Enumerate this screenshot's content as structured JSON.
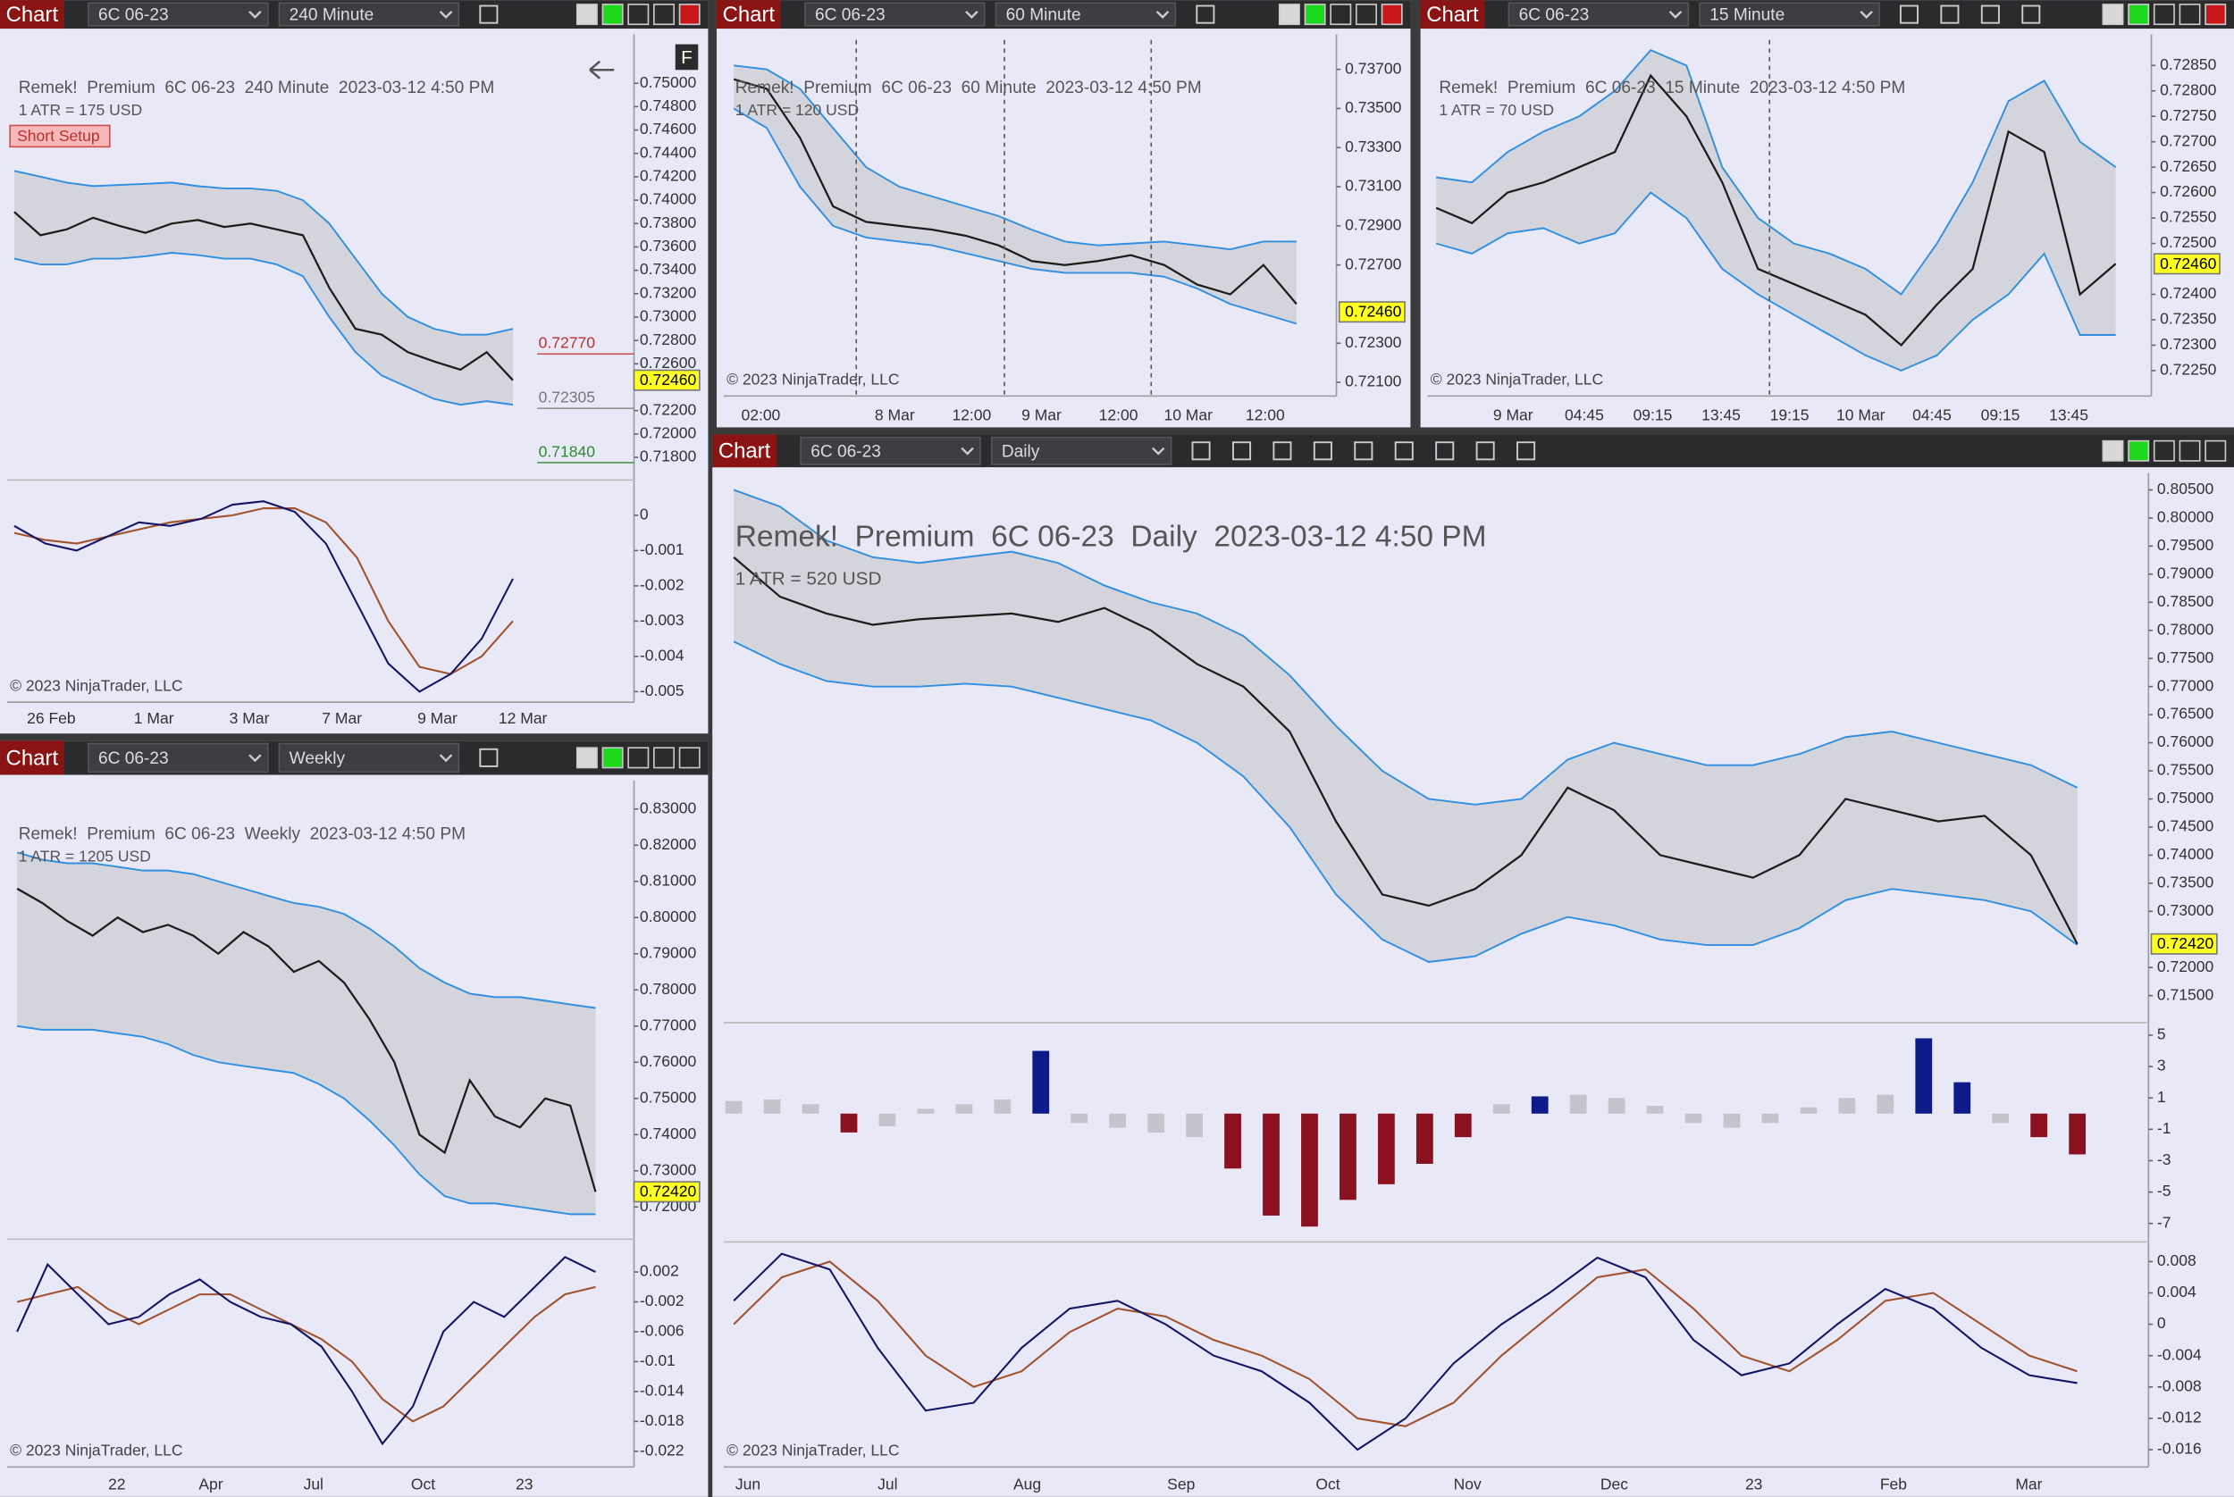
{
  "panels": [
    {
      "tab": "Chart",
      "instrument": "6C 06-23",
      "interval": "240 Minute",
      "button": "F",
      "title": "Remek!  Premium  6C 06-23  240 Minute  2023-03-12 4:50 PM",
      "atr": "1 ATR = 175 USD",
      "setup": "Short Setup",
      "copyright": "© 2023 NinjaTrader, LLC",
      "x_labels": [
        "26 Feb",
        "1 Mar",
        "3 Mar",
        "7 Mar",
        "9 Mar",
        "12 Mar"
      ],
      "price": {
        "ylim": [
          0.7163,
          0.7537
        ],
        "yticks": [
          {
            "value": 0.75,
            "label": "0.75000"
          },
          {
            "value": 0.748,
            "label": "0.74800"
          },
          {
            "value": 0.746,
            "label": "0.74600"
          },
          {
            "value": 0.744,
            "label": "0.74400"
          },
          {
            "value": 0.742,
            "label": "0.74200"
          },
          {
            "value": 0.74,
            "label": "0.74000"
          },
          {
            "value": 0.738,
            "label": "0.73800"
          },
          {
            "value": 0.736,
            "label": "0.73600"
          },
          {
            "value": 0.734,
            "label": "0.73400"
          },
          {
            "value": 0.732,
            "label": "0.73200"
          },
          {
            "value": 0.73,
            "label": "0.73000"
          },
          {
            "value": 0.728,
            "label": "0.72800"
          },
          {
            "value": 0.726,
            "label": "0.72600"
          },
          {
            "value": 0.722,
            "label": "0.72200"
          },
          {
            "value": 0.72,
            "label": "0.72000"
          },
          {
            "value": 0.718,
            "label": "0.71800"
          }
        ],
        "close": [
          0.739,
          0.737,
          0.7375,
          0.7385,
          0.7378,
          0.7372,
          0.738,
          0.7383,
          0.7377,
          0.738,
          0.7375,
          0.737,
          0.7325,
          0.729,
          0.7285,
          0.727,
          0.7262,
          0.7255,
          0.727,
          0.7246
        ],
        "upper": [
          0.7425,
          0.742,
          0.7415,
          0.7412,
          0.7413,
          0.7414,
          0.7415,
          0.7412,
          0.741,
          0.741,
          0.7408,
          0.74,
          0.738,
          0.735,
          0.732,
          0.73,
          0.729,
          0.7285,
          0.7285,
          0.729
        ],
        "lower": [
          0.735,
          0.7345,
          0.7345,
          0.735,
          0.735,
          0.7352,
          0.7355,
          0.7353,
          0.735,
          0.735,
          0.7345,
          0.7335,
          0.73,
          0.727,
          0.725,
          0.724,
          0.723,
          0.7225,
          0.7228,
          0.7225
        ],
        "last": {
          "value": 0.7246,
          "label": "0.72460"
        },
        "levels": [
          {
            "value": 0.7277,
            "label": "0.72770",
            "color": "#c03030"
          },
          {
            "value": 0.72305,
            "label": "0.72305",
            "color": "#777777"
          },
          {
            "value": 0.7184,
            "label": "0.71840",
            "color": "#2e8b2e"
          }
        ]
      },
      "osc": {
        "ylim": [
          -0.0053,
          0.001
        ],
        "yticks": [
          0,
          -0.001,
          -0.002,
          -0.003,
          -0.004,
          -0.005
        ],
        "fast": [
          -0.0003,
          -0.0008,
          -0.001,
          -0.0006,
          -0.0002,
          -0.0003,
          -0.0001,
          0.0003,
          0.0004,
          0.0001,
          -0.0008,
          -0.0025,
          -0.0042,
          -0.005,
          -0.0045,
          -0.0035,
          -0.0018
        ],
        "slow": [
          -0.0005,
          -0.0007,
          -0.0008,
          -0.0006,
          -0.0004,
          -0.0002,
          -0.0001,
          0,
          0.0002,
          0.0002,
          -0.0002,
          -0.0012,
          -0.003,
          -0.0043,
          -0.0045,
          -0.004,
          -0.003
        ]
      }
    },
    {
      "tab": "Chart",
      "instrument": "6C 06-23",
      "interval": "60 Minute",
      "title": "Remek!  Premium  6C 06-23  60 Minute  2023-03-12 4:50 PM",
      "atr": "1 ATR = 120 USD",
      "copyright": "© 2023 NinjaTrader, LLC",
      "x_labels": [
        "02:00",
        "8 Mar",
        "12:00",
        "9 Mar",
        "12:00",
        "10 Mar",
        "12:00"
      ],
      "price": {
        "ylim": [
          0.7203,
          0.7385
        ],
        "yticks": [
          {
            "value": 0.737,
            "label": "0.73700"
          },
          {
            "value": 0.735,
            "label": "0.73500"
          },
          {
            "value": 0.733,
            "label": "0.73300"
          },
          {
            "value": 0.731,
            "label": "0.73100"
          },
          {
            "value": 0.729,
            "label": "0.72900"
          },
          {
            "value": 0.727,
            "label": "0.72700"
          },
          {
            "value": 0.723,
            "label": "0.72300"
          },
          {
            "value": 0.721,
            "label": "0.72100"
          }
        ],
        "close": [
          0.7365,
          0.736,
          0.7335,
          0.73,
          0.7292,
          0.729,
          0.7288,
          0.7285,
          0.728,
          0.7272,
          0.727,
          0.7272,
          0.7275,
          0.727,
          0.726,
          0.7255,
          0.727,
          0.725
        ],
        "upper": [
          0.7372,
          0.737,
          0.736,
          0.734,
          0.732,
          0.731,
          0.7305,
          0.73,
          0.7295,
          0.7288,
          0.7282,
          0.728,
          0.7281,
          0.7282,
          0.728,
          0.7278,
          0.7282,
          0.7282
        ],
        "lower": [
          0.735,
          0.734,
          0.731,
          0.729,
          0.7284,
          0.7282,
          0.728,
          0.7276,
          0.7272,
          0.7268,
          0.7266,
          0.7266,
          0.7266,
          0.7264,
          0.7258,
          0.725,
          0.7245,
          0.724
        ],
        "last": {
          "value": 0.7246,
          "label": "0.72460"
        }
      }
    },
    {
      "tab": "Chart",
      "instrument": "6C 06-23",
      "interval": "15 Minute",
      "title": "Remek!  Premium  6C 06-23  15 Minute  2023-03-12 4:50 PM",
      "atr": "1 ATR = 70 USD",
      "copyright": "© 2023 NinjaTrader, LLC",
      "x_labels": [
        "9 Mar",
        "04:45",
        "09:15",
        "13:45",
        "19:15",
        "10 Mar",
        "04:45",
        "09:15",
        "13:45"
      ],
      "price": {
        "ylim": [
          0.722,
          0.729
        ],
        "yticks": [
          {
            "value": 0.7285,
            "label": "0.72850"
          },
          {
            "value": 0.728,
            "label": "0.72800"
          },
          {
            "value": 0.7275,
            "label": "0.72750"
          },
          {
            "value": 0.727,
            "label": "0.72700"
          },
          {
            "value": 0.7265,
            "label": "0.72650"
          },
          {
            "value": 0.726,
            "label": "0.72600"
          },
          {
            "value": 0.7255,
            "label": "0.72550"
          },
          {
            "value": 0.725,
            "label": "0.72500"
          },
          {
            "value": 0.724,
            "label": "0.72400"
          },
          {
            "value": 0.7235,
            "label": "0.72350"
          },
          {
            "value": 0.723,
            "label": "0.72300"
          },
          {
            "value": 0.7225,
            "label": "0.72250"
          }
        ],
        "close": [
          0.7257,
          0.7254,
          0.726,
          0.7262,
          0.7265,
          0.7268,
          0.7283,
          0.7275,
          0.7262,
          0.7245,
          0.7242,
          0.7239,
          0.7236,
          0.723,
          0.7238,
          0.7245,
          0.7272,
          0.7268,
          0.724,
          0.7246
        ],
        "upper": [
          0.7263,
          0.7262,
          0.7268,
          0.7272,
          0.7275,
          0.728,
          0.7288,
          0.7285,
          0.7265,
          0.7255,
          0.725,
          0.7248,
          0.7245,
          0.724,
          0.725,
          0.7262,
          0.7278,
          0.7282,
          0.727,
          0.7265
        ],
        "lower": [
          0.725,
          0.7248,
          0.7252,
          0.7253,
          0.725,
          0.7252,
          0.726,
          0.7255,
          0.7245,
          0.724,
          0.7236,
          0.7232,
          0.7228,
          0.7225,
          0.7228,
          0.7235,
          0.724,
          0.7248,
          0.7232,
          0.7232
        ],
        "last": {
          "value": 0.7246,
          "label": "0.72460"
        }
      }
    },
    {
      "tab": "Chart",
      "instrument": "6C 06-23",
      "interval": "Daily",
      "title": "Remek!  Premium  6C 06-23  Daily  2023-03-12 4:50 PM",
      "atr": "1 ATR = 520 USD",
      "copyright": "© 2023 NinjaTrader, LLC",
      "x_labels": [
        "Jun",
        "Jul",
        "Aug",
        "Sep",
        "Oct",
        "Nov",
        "Dec",
        "23",
        "Feb",
        "Mar"
      ],
      "price": {
        "ylim": [
          0.7107,
          0.807
        ],
        "yticks": [
          {
            "value": 0.805,
            "label": "0.80500"
          },
          {
            "value": 0.8,
            "label": "0.80000"
          },
          {
            "value": 0.795,
            "label": "0.79500"
          },
          {
            "value": 0.79,
            "label": "0.79000"
          },
          {
            "value": 0.785,
            "label": "0.78500"
          },
          {
            "value": 0.78,
            "label": "0.78000"
          },
          {
            "value": 0.775,
            "label": "0.77500"
          },
          {
            "value": 0.77,
            "label": "0.77000"
          },
          {
            "value": 0.765,
            "label": "0.76500"
          },
          {
            "value": 0.76,
            "label": "0.76000"
          },
          {
            "value": 0.755,
            "label": "0.75500"
          },
          {
            "value": 0.75,
            "label": "0.75000"
          },
          {
            "value": 0.745,
            "label": "0.74500"
          },
          {
            "value": 0.74,
            "label": "0.74000"
          },
          {
            "value": 0.735,
            "label": "0.73500"
          },
          {
            "value": 0.73,
            "label": "0.73000"
          },
          {
            "value": 0.72,
            "label": "0.72000"
          },
          {
            "value": 0.715,
            "label": "0.71500"
          }
        ],
        "close": [
          0.793,
          0.786,
          0.783,
          0.781,
          0.782,
          0.7825,
          0.783,
          0.7815,
          0.784,
          0.78,
          0.774,
          0.77,
          0.762,
          0.746,
          0.733,
          0.731,
          0.734,
          0.74,
          0.752,
          0.748,
          0.74,
          0.738,
          0.736,
          0.74,
          0.75,
          0.748,
          0.746,
          0.747,
          0.74,
          0.7242
        ],
        "upper": [
          0.805,
          0.802,
          0.796,
          0.793,
          0.792,
          0.793,
          0.794,
          0.792,
          0.788,
          0.785,
          0.783,
          0.779,
          0.772,
          0.763,
          0.755,
          0.75,
          0.749,
          0.75,
          0.757,
          0.76,
          0.758,
          0.756,
          0.756,
          0.758,
          0.761,
          0.762,
          0.76,
          0.758,
          0.756,
          0.752
        ],
        "lower": [
          0.778,
          0.774,
          0.771,
          0.77,
          0.77,
          0.7705,
          0.77,
          0.768,
          0.766,
          0.764,
          0.76,
          0.754,
          0.745,
          0.733,
          0.725,
          0.721,
          0.722,
          0.726,
          0.729,
          0.7275,
          0.725,
          0.724,
          0.724,
          0.727,
          0.732,
          0.734,
          0.733,
          0.732,
          0.73,
          0.724
        ],
        "last": {
          "value": 0.7242,
          "label": "0.72420"
        }
      },
      "hist": {
        "ylim": [
          -8,
          5.8
        ],
        "yticks": [
          5,
          3,
          1,
          -1,
          -3,
          -5,
          -7
        ],
        "values": [
          0.8,
          0.9,
          0.6,
          -1.2,
          -0.8,
          0.3,
          0.6,
          0.9,
          4,
          -0.6,
          -0.9,
          -1.2,
          -1.5,
          -3.5,
          -6.5,
          -7.2,
          -5.5,
          -4.5,
          -3.2,
          -1.5,
          0.6,
          1.1,
          1.2,
          1,
          0.5,
          -0.6,
          -0.9,
          -0.6,
          0.4,
          1,
          1.2,
          4.8,
          2,
          -0.6,
          -1.5,
          -2.6
        ],
        "colors": [
          "#c4c4cc",
          "#c4c4cc",
          "#c4c4cc",
          "#8b1020",
          "#c4c4cc",
          "#c4c4cc",
          "#c4c4cc",
          "#c4c4cc",
          "#0c1a8a",
          "#c4c4cc",
          "#c4c4cc",
          "#c4c4cc",
          "#c4c4cc",
          "#8b1020",
          "#8b1020",
          "#8b1020",
          "#8b1020",
          "#8b1020",
          "#8b1020",
          "#8b1020",
          "#c4c4cc",
          "#0c1a8a",
          "#c4c4cc",
          "#c4c4cc",
          "#c4c4cc",
          "#c4c4cc",
          "#c4c4cc",
          "#c4c4cc",
          "#c4c4cc",
          "#c4c4cc",
          "#c4c4cc",
          "#0c1a8a",
          "#0c1a8a",
          "#c4c4cc",
          "#8b1020",
          "#8b1020"
        ]
      },
      "osc": {
        "ylim": [
          -0.0182,
          0.0105
        ],
        "yticks": [
          0.008,
          0.004,
          0,
          -0.004,
          -0.008,
          -0.012,
          -0.016
        ],
        "fast": [
          0.003,
          0.009,
          0.007,
          -0.003,
          -0.011,
          -0.01,
          -0.003,
          0.002,
          0.003,
          0,
          -0.004,
          -0.006,
          -0.01,
          -0.016,
          -0.012,
          -0.005,
          0,
          0.004,
          0.0085,
          0.006,
          -0.002,
          -0.0065,
          -0.005,
          0,
          0.0045,
          0.002,
          -0.003,
          -0.0065,
          -0.0075
        ],
        "slow": [
          0,
          0.006,
          0.008,
          0.003,
          -0.004,
          -0.008,
          -0.006,
          -0.001,
          0.002,
          0.001,
          -0.002,
          -0.004,
          -0.007,
          -0.012,
          -0.013,
          -0.01,
          -0.004,
          0.001,
          0.006,
          0.007,
          0.002,
          -0.004,
          -0.006,
          -0.002,
          0.003,
          0.004,
          0,
          -0.004,
          -0.006
        ]
      }
    },
    {
      "tab": "Chart",
      "instrument": "6C 06-23",
      "interval": "Weekly",
      "title": "Remek!  Premium  6C 06-23  Weekly  2023-03-12 4:50 PM",
      "atr": "1 ATR = 1205 USD",
      "copyright": "© 2023 NinjaTrader, LLC",
      "x_labels": [
        "22",
        "Apr",
        "Jul",
        "Oct",
        "23"
      ],
      "price": {
        "ylim": [
          0.7119,
          0.8363
        ],
        "yticks": [
          {
            "value": 0.83,
            "label": "0.83000"
          },
          {
            "value": 0.82,
            "label": "0.82000"
          },
          {
            "value": 0.81,
            "label": "0.81000"
          },
          {
            "value": 0.8,
            "label": "0.80000"
          },
          {
            "value": 0.79,
            "label": "0.79000"
          },
          {
            "value": 0.78,
            "label": "0.78000"
          },
          {
            "value": 0.77,
            "label": "0.77000"
          },
          {
            "value": 0.76,
            "label": "0.76000"
          },
          {
            "value": 0.75,
            "label": "0.75000"
          },
          {
            "value": 0.74,
            "label": "0.74000"
          },
          {
            "value": 0.73,
            "label": "0.73000"
          },
          {
            "value": 0.72,
            "label": "0.72000"
          }
        ],
        "close": [
          0.808,
          0.804,
          0.799,
          0.795,
          0.8,
          0.796,
          0.798,
          0.795,
          0.79,
          0.796,
          0.792,
          0.785,
          0.788,
          0.782,
          0.772,
          0.76,
          0.74,
          0.735,
          0.755,
          0.745,
          0.742,
          0.75,
          0.748,
          0.7242
        ],
        "upper": [
          0.818,
          0.816,
          0.815,
          0.815,
          0.814,
          0.813,
          0.813,
          0.812,
          0.81,
          0.808,
          0.806,
          0.804,
          0.803,
          0.801,
          0.797,
          0.792,
          0.786,
          0.782,
          0.779,
          0.778,
          0.778,
          0.777,
          0.776,
          0.775
        ],
        "lower": [
          0.77,
          0.769,
          0.769,
          0.769,
          0.768,
          0.767,
          0.765,
          0.762,
          0.76,
          0.759,
          0.758,
          0.757,
          0.754,
          0.75,
          0.744,
          0.737,
          0.729,
          0.723,
          0.721,
          0.721,
          0.72,
          0.719,
          0.718,
          0.718
        ],
        "last": {
          "value": 0.7242,
          "label": "0.72420"
        }
      },
      "osc": {
        "ylim": [
          -0.0241,
          0.0064
        ],
        "yticks": [
          0.002,
          -0.002,
          -0.006,
          -0.01,
          -0.014,
          -0.018,
          -0.022
        ],
        "fast": [
          -0.006,
          0.003,
          -0.001,
          -0.005,
          -0.004,
          -0.001,
          0.001,
          -0.002,
          -0.004,
          -0.005,
          -0.008,
          -0.014,
          -0.021,
          -0.016,
          -0.006,
          -0.002,
          -0.004,
          0,
          0.004,
          0.002
        ],
        "slow": [
          -0.002,
          -0.001,
          0,
          -0.003,
          -0.005,
          -0.003,
          -0.001,
          -0.001,
          -0.003,
          -0.005,
          -0.007,
          -0.01,
          -0.015,
          -0.018,
          -0.016,
          -0.012,
          -0.008,
          -0.004,
          -0.001,
          0
        ]
      }
    }
  ]
}
